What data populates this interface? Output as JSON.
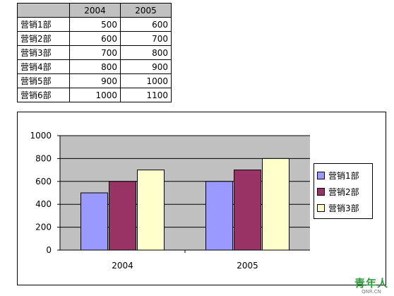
{
  "table": {
    "header": [
      "",
      "2004",
      "2005"
    ],
    "rows": [
      {
        "name": "营销1部",
        "v2004": "500",
        "v2005": "600"
      },
      {
        "name": "营销2部",
        "v2004": "600",
        "v2005": "700"
      },
      {
        "name": "营销3部",
        "v2004": "700",
        "v2005": "800"
      },
      {
        "name": "营销4部",
        "v2004": "800",
        "v2005": "900"
      },
      {
        "name": "营销5部",
        "v2004": "900",
        "v2005": "1000"
      },
      {
        "name": "营销6部",
        "v2004": "1000",
        "v2005": "1100"
      }
    ]
  },
  "chart_data": {
    "type": "bar",
    "categories": [
      "2004",
      "2005"
    ],
    "series": [
      {
        "name": "营销1部",
        "values": [
          500,
          600
        ],
        "color": "#9999ff"
      },
      {
        "name": "营销2部",
        "values": [
          600,
          700
        ],
        "color": "#993366"
      },
      {
        "name": "营销3部",
        "values": [
          700,
          800
        ],
        "color": "#ffffcc"
      }
    ],
    "ylim": [
      0,
      1000
    ],
    "yticks": [
      0,
      200,
      400,
      600,
      800,
      1000
    ],
    "grid": true,
    "plot_background": "#c0c0c0",
    "legend_position": "right"
  },
  "watermark": {
    "main": "青年人",
    "sub": "QNR.CN"
  }
}
